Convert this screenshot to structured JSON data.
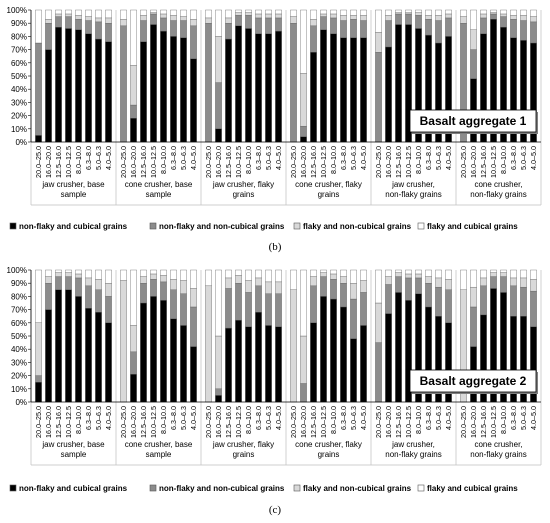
{
  "chart_data": [
    {
      "type": "bar",
      "stacked": true,
      "title": "Basalt aggregate 1",
      "caption": "(b)",
      "ylim": [
        0,
        100
      ],
      "yticks": [
        "0%",
        "10%",
        "20%",
        "30%",
        "40%",
        "50%",
        "60%",
        "70%",
        "80%",
        "90%",
        "100%"
      ],
      "categories": [
        "20.0–25.0",
        "16.0–20.0",
        "12.5–16.0",
        "10.0–12.5",
        "8.0–10.0",
        "6.3–8.0",
        "5.0–6.3",
        "4.0–5.0"
      ],
      "groups": [
        "jaw crusher, base sample",
        "cone crusher, base sample",
        "jaw crusher, flaky grains",
        "cone crusher, flaky grains",
        "jaw crusher, non-flaky grains",
        "cone crusher, non-flaky grains"
      ],
      "legend": [
        "non-flaky and cubical grains",
        "non-flaky and non-cubical grains",
        "flaky and non-cubical grains",
        "flaky and cubical grains"
      ],
      "colors": [
        "#000000",
        "#8c8c8c",
        "#d9d9d9",
        "#ffffff"
      ],
      "values": [
        [
          [
            5,
            70,
            0,
            25
          ],
          [
            70,
            20,
            3,
            7
          ],
          [
            87,
            8,
            2,
            3
          ],
          [
            86,
            9,
            2,
            3
          ],
          [
            85,
            8,
            3,
            4
          ],
          [
            82,
            10,
            3,
            5
          ],
          [
            78,
            13,
            3,
            6
          ],
          [
            76,
            14,
            4,
            6
          ]
        ],
        [
          [
            0,
            88,
            5,
            7
          ],
          [
            18,
            10,
            30,
            42
          ],
          [
            76,
            16,
            4,
            4
          ],
          [
            89,
            8,
            1,
            2
          ],
          [
            84,
            10,
            3,
            3
          ],
          [
            80,
            12,
            4,
            4
          ],
          [
            79,
            13,
            3,
            5
          ],
          [
            63,
            25,
            5,
            7
          ]
        ],
        [
          [
            0,
            90,
            4,
            6
          ],
          [
            10,
            35,
            35,
            20
          ],
          [
            78,
            12,
            4,
            6
          ],
          [
            88,
            8,
            2,
            2
          ],
          [
            86,
            10,
            2,
            2
          ],
          [
            82,
            12,
            3,
            3
          ],
          [
            82,
            12,
            3,
            3
          ],
          [
            84,
            10,
            3,
            3
          ]
        ],
        [
          [
            0,
            90,
            5,
            5
          ],
          [
            4,
            8,
            40,
            48
          ],
          [
            68,
            20,
            5,
            7
          ],
          [
            85,
            10,
            2,
            3
          ],
          [
            82,
            12,
            3,
            3
          ],
          [
            79,
            13,
            4,
            4
          ],
          [
            79,
            14,
            3,
            4
          ],
          [
            79,
            13,
            4,
            4
          ]
        ],
        [
          [
            0,
            68,
            15,
            17
          ],
          [
            72,
            20,
            4,
            4
          ],
          [
            89,
            8,
            1,
            2
          ],
          [
            89,
            8,
            1,
            2
          ],
          [
            86,
            10,
            2,
            2
          ],
          [
            81,
            12,
            3,
            4
          ],
          [
            75,
            17,
            4,
            4
          ],
          [
            80,
            14,
            3,
            3
          ]
        ],
        [
          [
            0,
            90,
            5,
            5
          ],
          [
            48,
            22,
            15,
            15
          ],
          [
            82,
            12,
            3,
            3
          ],
          [
            93,
            4,
            1,
            2
          ],
          [
            87,
            8,
            2,
            3
          ],
          [
            79,
            14,
            3,
            4
          ],
          [
            77,
            15,
            4,
            4
          ],
          [
            75,
            16,
            4,
            5
          ]
        ]
      ]
    },
    {
      "type": "bar",
      "stacked": true,
      "title": "Basalt aggregate 2",
      "caption": "(c)",
      "ylim": [
        0,
        100
      ],
      "yticks": [
        "0%",
        "10%",
        "20%",
        "30%",
        "40%",
        "50%",
        "60%",
        "70%",
        "80%",
        "90%",
        "100%"
      ],
      "categories": [
        "20.0–25.0",
        "16.0–20.0",
        "12.5–16.0",
        "10.0–12.5",
        "8.0–10.0",
        "6.3–8.0",
        "5.0–6.3",
        "4.0–5.0"
      ],
      "groups": [
        "jaw crusher, base sample",
        "cone crusher, base sample",
        "jaw crusher, flaky grains",
        "cone crusher, flaky grains",
        "jaw crusher, non-flaky grains",
        "cone crusher, non-flaky grains"
      ],
      "legend": [
        "non-flaky and cubical grains",
        "non-flaky and non-cubical grains",
        "flaky and non-cubical grains",
        "flaky and cubical grains"
      ],
      "colors": [
        "#000000",
        "#8c8c8c",
        "#d9d9d9",
        "#ffffff"
      ],
      "values": [
        [
          [
            15,
            5,
            40,
            40
          ],
          [
            70,
            20,
            5,
            5
          ],
          [
            85,
            10,
            3,
            2
          ],
          [
            85,
            10,
            3,
            2
          ],
          [
            80,
            14,
            3,
            3
          ],
          [
            71,
            17,
            6,
            6
          ],
          [
            68,
            17,
            8,
            7
          ],
          [
            60,
            20,
            10,
            10
          ]
        ],
        [
          [
            0,
            0,
            92,
            8
          ],
          [
            21,
            17,
            20,
            42
          ],
          [
            75,
            15,
            5,
            5
          ],
          [
            80,
            13,
            4,
            3
          ],
          [
            77,
            14,
            5,
            4
          ],
          [
            63,
            22,
            8,
            7
          ],
          [
            58,
            24,
            10,
            8
          ],
          [
            42,
            30,
            14,
            14
          ]
        ],
        [
          [
            0,
            0,
            88,
            12
          ],
          [
            5,
            5,
            40,
            50
          ],
          [
            56,
            30,
            8,
            6
          ],
          [
            62,
            28,
            6,
            4
          ],
          [
            57,
            26,
            9,
            8
          ],
          [
            68,
            20,
            6,
            6
          ],
          [
            58,
            24,
            9,
            9
          ],
          [
            57,
            25,
            9,
            9
          ]
        ],
        [
          [
            0,
            0,
            85,
            15
          ],
          [
            0,
            14,
            36,
            50
          ],
          [
            60,
            28,
            7,
            5
          ],
          [
            80,
            15,
            3,
            2
          ],
          [
            78,
            15,
            4,
            3
          ],
          [
            72,
            18,
            5,
            5
          ],
          [
            48,
            30,
            12,
            10
          ],
          [
            58,
            25,
            9,
            8
          ]
        ],
        [
          [
            0,
            45,
            30,
            25
          ],
          [
            67,
            22,
            6,
            5
          ],
          [
            83,
            12,
            3,
            2
          ],
          [
            77,
            17,
            3,
            3
          ],
          [
            82,
            12,
            3,
            3
          ],
          [
            72,
            18,
            5,
            5
          ],
          [
            65,
            22,
            7,
            6
          ],
          [
            60,
            25,
            8,
            7
          ]
        ],
        [
          [
            0,
            0,
            85,
            15
          ],
          [
            42,
            30,
            15,
            13
          ],
          [
            66,
            22,
            6,
            6
          ],
          [
            86,
            9,
            3,
            2
          ],
          [
            83,
            12,
            3,
            2
          ],
          [
            65,
            23,
            6,
            6
          ],
          [
            65,
            22,
            7,
            6
          ],
          [
            57,
            27,
            9,
            7
          ]
        ]
      ]
    }
  ]
}
